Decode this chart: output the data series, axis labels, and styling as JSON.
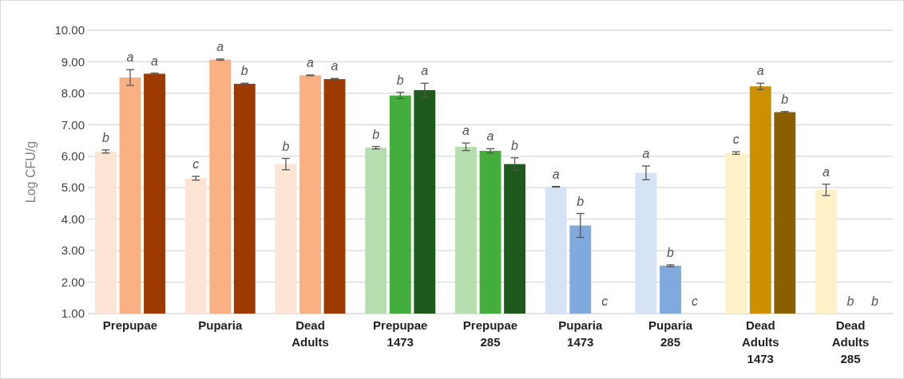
{
  "chart_data": {
    "type": "bar",
    "ylabel": "Log CFU/g",
    "categories": [
      "Prepupae",
      "Puparia",
      "Dead Adults",
      "Prepupae 1473",
      "Prepupae 285",
      "Puparia 1473",
      "Puparia 285",
      "Dead Adults 1473",
      "Dead Adults 285"
    ],
    "series": [
      {
        "colors": [
          "#fde4d4",
          "#fde4d4",
          "#fde4d4",
          "#b6ddae",
          "#b6ddae",
          "#d6e3f4",
          "#d6e3f4",
          "#fff0c8",
          "#fff0c8"
        ],
        "values": [
          6.15,
          5.3,
          5.75,
          6.27,
          6.3,
          5.03,
          5.47,
          6.1,
          4.93
        ],
        "errors": [
          0.05,
          0.06,
          0.18,
          0.04,
          0.12,
          0.01,
          0.22,
          0.04,
          0.18
        ],
        "value_labels": [
          "b",
          "c",
          "b",
          "b",
          "a",
          "a",
          "a",
          "c",
          "a"
        ]
      },
      {
        "colors": [
          "#f9b183",
          "#f9b183",
          "#f9b183",
          "#44ae3c",
          "#44ae3c",
          "#80a9dd",
          "#80a9dd",
          "#cc9000",
          null
        ],
        "values": [
          8.5,
          9.07,
          8.57,
          7.93,
          6.17,
          3.8,
          2.52,
          8.22,
          null
        ],
        "errors": [
          0.25,
          0.02,
          0.01,
          0.1,
          0.07,
          0.38,
          0.03,
          0.1,
          null
        ],
        "value_labels": [
          "a",
          "a",
          "a",
          "b",
          "a",
          "b",
          "b",
          "a",
          "b"
        ]
      },
      {
        "colors": [
          "#9c3a00",
          "#9c3a00",
          "#9c3a00",
          "#1e5a1c",
          "#1e5a1c",
          null,
          null,
          "#8a5f00",
          null
        ],
        "values": [
          8.62,
          8.3,
          8.45,
          8.1,
          5.75,
          null,
          null,
          7.4,
          null
        ],
        "errors": [
          0.02,
          0.02,
          0.02,
          0.22,
          0.2,
          null,
          null,
          0.02,
          null
        ],
        "value_labels": [
          "a",
          "b",
          "a",
          "a",
          "b",
          "c",
          "c",
          "b",
          "b"
        ]
      }
    ],
    "ylim": [
      1,
      10
    ],
    "yticks": [
      {
        "value": 1,
        "label": "1.00"
      },
      {
        "value": 2,
        "label": "2.00"
      },
      {
        "value": 3,
        "label": "3.00"
      },
      {
        "value": 4,
        "label": "4.00"
      },
      {
        "value": 5,
        "label": "5.00"
      },
      {
        "value": 6,
        "label": "6.00"
      },
      {
        "value": 7,
        "label": "7.00"
      },
      {
        "value": 8,
        "label": "8.00"
      },
      {
        "value": 9,
        "label": "9.00"
      },
      {
        "value": 10,
        "label": "10.00"
      }
    ],
    "grid": "y"
  }
}
